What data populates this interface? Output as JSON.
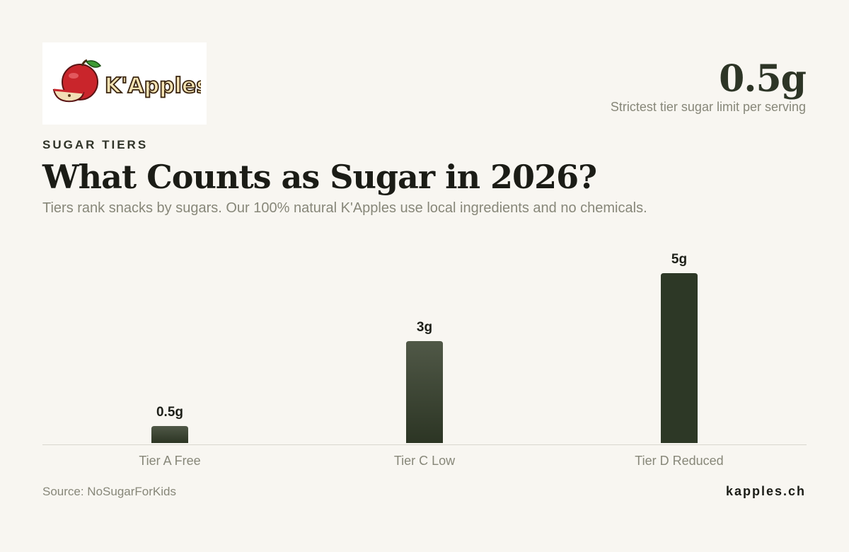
{
  "brand": {
    "logo_text": "K'Apples"
  },
  "kpi": {
    "value": "0.5g",
    "label": "Strictest tier sugar limit per serving"
  },
  "header": {
    "eyebrow": "SUGAR TIERS",
    "title": "What Counts as Sugar in 2026?",
    "subtitle": "Tiers rank snacks by sugars. Our 100% natural K'Apples use local ingredients and no chemicals."
  },
  "chart_data": {
    "type": "bar",
    "categories": [
      "Tier A Free",
      "Tier C Low",
      "Tier D Reduced"
    ],
    "values": [
      0.5,
      3,
      5
    ],
    "value_labels": [
      "0.5g",
      "3g",
      "5g"
    ],
    "ylim": [
      0,
      5
    ],
    "grid": false,
    "colors": {
      "bar_top": "#505847",
      "bar_bottom": "#2c3524",
      "bar_strong": "#2d3826",
      "baseline": "#d8d6cf"
    }
  },
  "footer": {
    "source": "Source: NoSugarForKids",
    "site": "kapples.ch"
  }
}
